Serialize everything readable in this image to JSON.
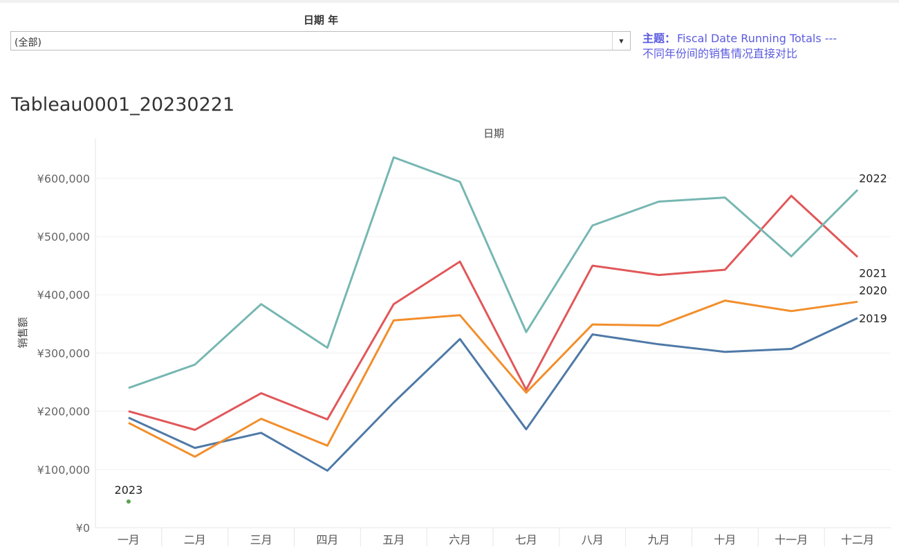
{
  "filter": {
    "label": "日期 年",
    "value": "(全部)"
  },
  "subject": {
    "label": "主题：",
    "title": "Fiscal Date Running Totals ---",
    "subtitle": "不同年份间的销售情况直接对比"
  },
  "sheet_title": "Tableau0001_20230221",
  "chart_data": {
    "type": "line",
    "title": "",
    "header": "日期",
    "xlabel": "",
    "ylabel": "销售额",
    "categories": [
      "一月",
      "二月",
      "三月",
      "四月",
      "五月",
      "六月",
      "七月",
      "八月",
      "九月",
      "十月",
      "十一月",
      "十二月"
    ],
    "y_ticks": [
      {
        "value": 0,
        "label": "¥0"
      },
      {
        "value": 100000,
        "label": "¥100,000"
      },
      {
        "value": 200000,
        "label": "¥200,000"
      },
      {
        "value": 300000,
        "label": "¥300,000"
      },
      {
        "value": 400000,
        "label": "¥400,000"
      },
      {
        "value": 500000,
        "label": "¥500,000"
      },
      {
        "value": 600000,
        "label": "¥600,000"
      }
    ],
    "ylim": [
      0,
      600000
    ],
    "grid": true,
    "series": [
      {
        "name": "2019",
        "color": "#4e79a7",
        "values": [
          189000,
          137000,
          163000,
          98000,
          215000,
          324000,
          169000,
          332000,
          315000,
          302000,
          307000,
          360000
        ]
      },
      {
        "name": "2020",
        "color": "#f28e2b",
        "values": [
          180000,
          122000,
          187000,
          141000,
          356000,
          365000,
          232000,
          349000,
          347000,
          390000,
          372000,
          388000
        ]
      },
      {
        "name": "2021",
        "color": "#e15759",
        "values": [
          200000,
          168000,
          231000,
          186000,
          384000,
          457000,
          237000,
          450000,
          434000,
          443000,
          570000,
          465000
        ]
      },
      {
        "name": "2022",
        "color": "#76b7b2",
        "values": [
          240000,
          280000,
          384000,
          309000,
          636000,
          594000,
          336000,
          519000,
          560000,
          567000,
          466000,
          580000
        ]
      },
      {
        "name": "2023",
        "color": "#59a14f",
        "values": [
          45000,
          null,
          null,
          null,
          null,
          null,
          null,
          null,
          null,
          null,
          null,
          null
        ]
      }
    ]
  }
}
